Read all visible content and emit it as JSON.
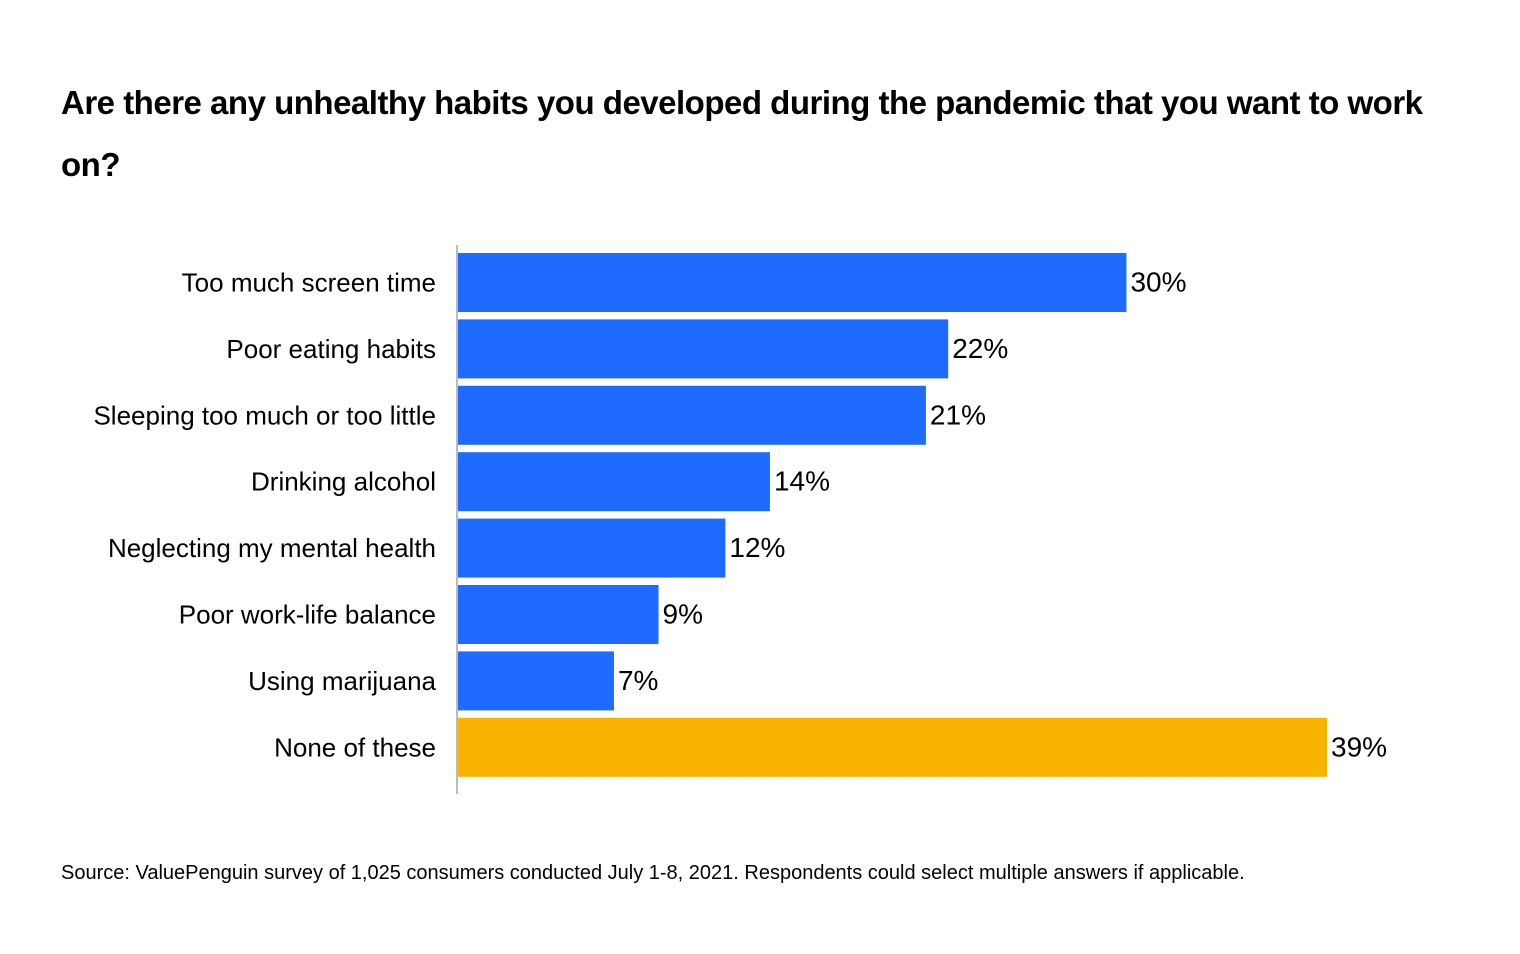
{
  "chart_data": {
    "type": "bar",
    "orientation": "horizontal",
    "title": "Are there any unhealthy habits you developed during the pandemic that you want to work on?",
    "categories": [
      "Too much screen time",
      "Poor eating habits",
      "Sleeping too much or too little",
      "Drinking alcohol",
      "Neglecting my mental health",
      "Poor work-life balance",
      "Using marijuana",
      "None of these"
    ],
    "values": [
      30,
      22,
      21,
      14,
      12,
      9,
      7,
      39
    ],
    "value_labels": [
      "30%",
      "22%",
      "21%",
      "14%",
      "12%",
      "9%",
      "7%",
      "39%"
    ],
    "unit": "%",
    "xlim": [
      0,
      39
    ],
    "grid": false,
    "colors": {
      "default": "#1f6bff",
      "highlight": "#f9b300"
    },
    "highlight_index": 7,
    "source": "Source: ValuePenguin survey of 1,025 consumers conducted July 1-8, 2021. Respondents could select multiple answers if applicable."
  }
}
